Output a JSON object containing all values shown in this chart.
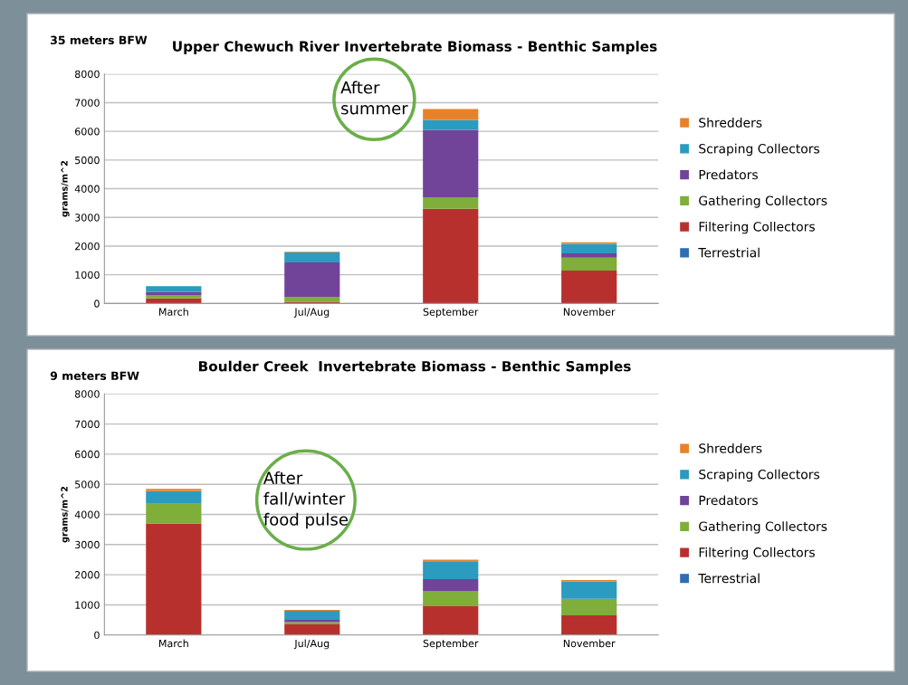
{
  "chart_data": [
    {
      "type": "bar",
      "stacked": true,
      "subtitle": "35 meters BFW",
      "title": "Upper Chewuch River Invertebrate Biomass - Benthic Samples",
      "ylabel": "grams/m^2",
      "categories": [
        "March",
        "Jul/Aug",
        "September",
        "November"
      ],
      "ylim": [
        0,
        8000
      ],
      "yticks": [
        0,
        1000,
        2000,
        3000,
        4000,
        5000,
        6000,
        7000,
        8000
      ],
      "grid": "y",
      "legend": "right",
      "annotations": [
        "After\nsummer"
      ],
      "series": [
        {
          "name": "Terrestrial",
          "color": "#2f6db5",
          "values": [
            0,
            0,
            0,
            0
          ]
        },
        {
          "name": "Filtering Collectors",
          "color": "#b8302e",
          "values": [
            180,
            60,
            3300,
            1150
          ]
        },
        {
          "name": "Gathering Collectors",
          "color": "#7fae3a",
          "values": [
            100,
            170,
            400,
            450
          ]
        },
        {
          "name": "Predators",
          "color": "#71449a",
          "values": [
            120,
            1200,
            2350,
            150
          ]
        },
        {
          "name": "Scraping Collectors",
          "color": "#2b9bbf",
          "values": [
            200,
            350,
            350,
            330
          ]
        },
        {
          "name": "Shredders",
          "color": "#e8822a",
          "values": [
            null,
            20,
            380,
            50
          ]
        }
      ]
    },
    {
      "type": "bar",
      "stacked": true,
      "subtitle": "9 meters BFW",
      "title": "Boulder Creek  Invertebrate Biomass - Benthic Samples",
      "ylabel": "grams/m^2",
      "categories": [
        "March",
        "Jul/Aug",
        "September",
        "November"
      ],
      "ylim": [
        0,
        8000
      ],
      "yticks": [
        0,
        1000,
        2000,
        3000,
        4000,
        5000,
        6000,
        7000,
        8000
      ],
      "grid": "y",
      "legend": "right",
      "annotations": [
        "After\nfall/winter\nfood pulse"
      ],
      "series": [
        {
          "name": "Terrestrial",
          "color": "#2f6db5",
          "values": [
            0,
            0,
            0,
            0
          ]
        },
        {
          "name": "Filtering Collectors",
          "color": "#b8302e",
          "values": [
            3700,
            350,
            950,
            650
          ]
        },
        {
          "name": "Gathering Collectors",
          "color": "#7fae3a",
          "values": [
            650,
            80,
            500,
            550
          ]
        },
        {
          "name": "Predators",
          "color": "#71449a",
          "values": [
            0,
            70,
            400,
            0
          ]
        },
        {
          "name": "Scraping Collectors",
          "color": "#2b9bbf",
          "values": [
            420,
            300,
            600,
            580
          ]
        },
        {
          "name": "Shredders",
          "color": "#e8822a",
          "values": [
            80,
            30,
            50,
            40
          ]
        }
      ]
    }
  ]
}
